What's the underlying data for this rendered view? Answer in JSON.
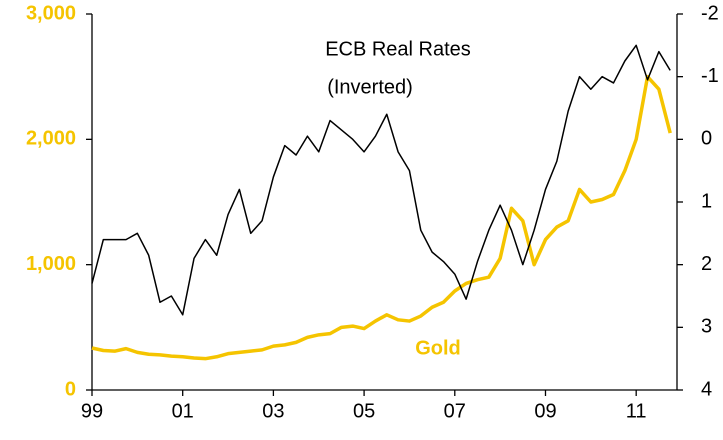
{
  "chart_data": {
    "type": "line",
    "annotations": [
      "(Inverted)"
    ],
    "x": [
      1999,
      1999.25,
      1999.5,
      1999.75,
      2000,
      2000.25,
      2000.5,
      2000.75,
      2001,
      2001.25,
      2001.5,
      2001.75,
      2002,
      2002.25,
      2002.5,
      2002.75,
      2003,
      2003.25,
      2003.5,
      2003.75,
      2004,
      2004.25,
      2004.5,
      2004.75,
      2005,
      2005.25,
      2005.5,
      2005.75,
      2006,
      2006.25,
      2006.5,
      2006.75,
      2007,
      2007.25,
      2007.5,
      2007.75,
      2008,
      2008.25,
      2008.5,
      2008.75,
      2009,
      2009.25,
      2009.5,
      2009.75,
      2010,
      2010.25,
      2010.5,
      2010.75,
      2011,
      2011.25,
      2011.5,
      2011.75
    ],
    "series": [
      {
        "name": "Gold",
        "color": "#f5c400",
        "axis": "y",
        "values": [
          335,
          315,
          310,
          330,
          300,
          285,
          280,
          270,
          265,
          255,
          250,
          265,
          290,
          300,
          310,
          320,
          350,
          360,
          380,
          420,
          440,
          450,
          500,
          510,
          490,
          550,
          600,
          560,
          550,
          590,
          660,
          700,
          790,
          850,
          880,
          900,
          1050,
          1450,
          1350,
          1000,
          1200,
          1300,
          1350,
          1600,
          1500,
          1520,
          1560,
          1750,
          2000,
          2500,
          2400,
          2050
        ]
      },
      {
        "name": "ECB Real Rates",
        "color": "#000000",
        "axis": "y2",
        "values": [
          2.3,
          1.6,
          1.6,
          1.6,
          1.5,
          1.85,
          2.6,
          2.5,
          2.8,
          1.9,
          1.6,
          1.85,
          1.2,
          0.8,
          1.5,
          1.3,
          0.6,
          0.1,
          0.25,
          -0.05,
          0.2,
          -0.3,
          -0.15,
          0,
          0.2,
          -0.05,
          -0.4,
          0.2,
          0.5,
          1.45,
          1.8,
          1.95,
          2.15,
          2.55,
          1.95,
          1.45,
          1.05,
          1.45,
          2.0,
          1.45,
          0.8,
          0.35,
          -0.45,
          -1.0,
          -0.8,
          -1.0,
          -0.9,
          -1.25,
          -1.5,
          -0.95,
          -1.4,
          -1.1
        ]
      }
    ],
    "xlim": [
      1999,
      2011.9
    ],
    "xticks": [
      {
        "value": 1999,
        "label": "99"
      },
      {
        "value": 2001,
        "label": "01"
      },
      {
        "value": 2003,
        "label": "03"
      },
      {
        "value": 2005,
        "label": "05"
      },
      {
        "value": 2007,
        "label": "07"
      },
      {
        "value": 2009,
        "label": "09"
      },
      {
        "value": 2011,
        "label": "11"
      }
    ],
    "ylim": [
      0,
      3000
    ],
    "yticks": [
      0,
      {
        "value": 1000,
        "label": "1,000"
      },
      {
        "value": 2000,
        "label": "2,000"
      },
      {
        "value": 3000,
        "label": "3,000"
      }
    ],
    "y2lim": [
      4,
      -2
    ],
    "y2ticks": [
      -2,
      -1,
      0,
      1,
      2,
      3,
      4
    ],
    "grid": false
  }
}
